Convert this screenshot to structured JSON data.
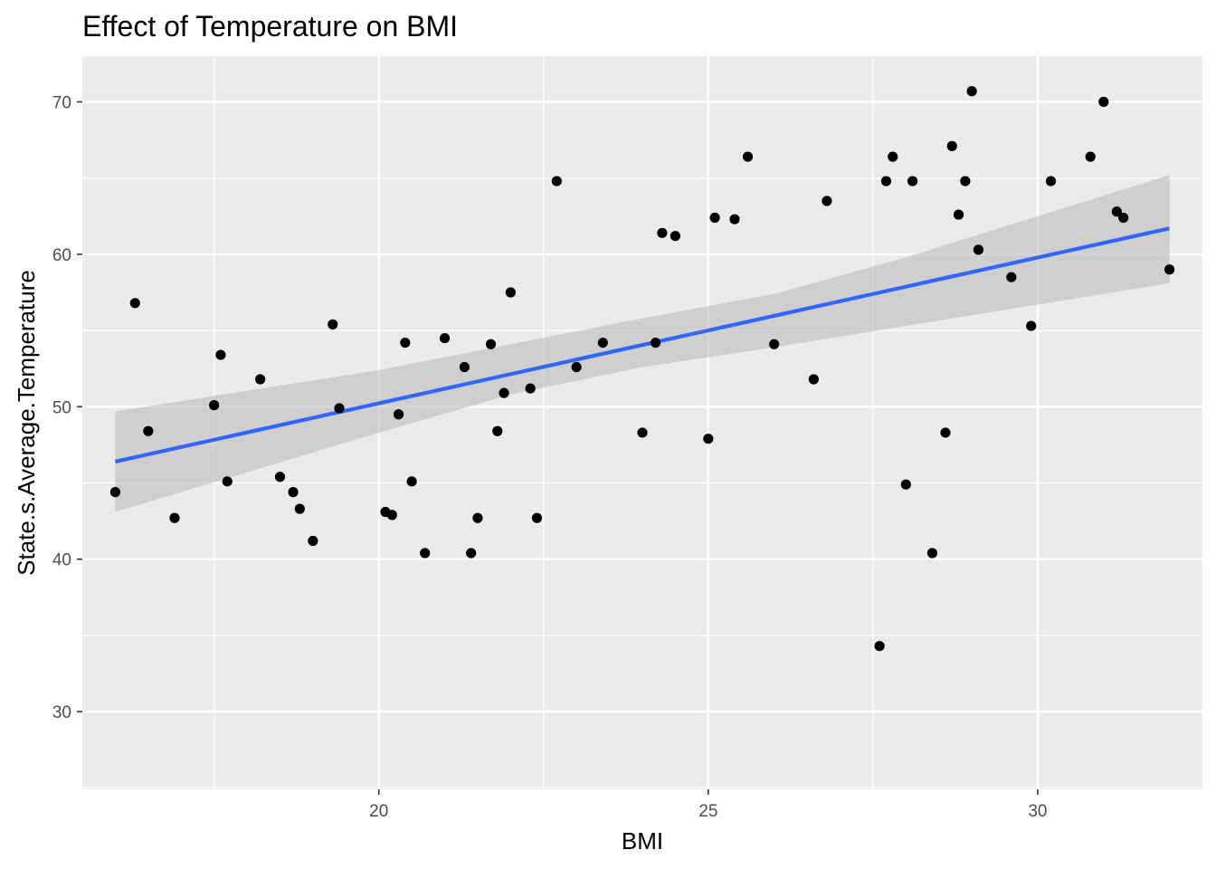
{
  "chart_data": {
    "type": "scatter",
    "title": "Effect of Temperature on BMI",
    "xlabel": "BMI",
    "ylabel": "State.s.Average.Temperature",
    "xlim": [
      15.5,
      32.5
    ],
    "ylim": [
      24.9,
      73.0
    ],
    "x_ticks": [
      20,
      25,
      30
    ],
    "y_ticks": [
      30,
      40,
      50,
      60,
      70
    ],
    "x_tick_labels": [
      "20",
      "25",
      "30"
    ],
    "y_tick_labels": [
      "30",
      "40",
      "50",
      "60",
      "70"
    ],
    "grid": true,
    "colors": {
      "panel_background": "#ebebeb",
      "grid_major": "#ffffff",
      "points": "#000000",
      "trend_line": "#3366ff",
      "confidence_band": "#bdbdbd"
    },
    "points": [
      {
        "x": 16.0,
        "y": 44.4
      },
      {
        "x": 16.3,
        "y": 56.8
      },
      {
        "x": 16.5,
        "y": 48.4
      },
      {
        "x": 16.9,
        "y": 42.7
      },
      {
        "x": 17.5,
        "y": 50.1
      },
      {
        "x": 17.6,
        "y": 53.4
      },
      {
        "x": 17.7,
        "y": 45.1
      },
      {
        "x": 18.2,
        "y": 51.8
      },
      {
        "x": 18.5,
        "y": 45.4
      },
      {
        "x": 18.7,
        "y": 44.4
      },
      {
        "x": 18.8,
        "y": 43.3
      },
      {
        "x": 19.0,
        "y": 41.2
      },
      {
        "x": 19.3,
        "y": 55.4
      },
      {
        "x": 19.4,
        "y": 49.9
      },
      {
        "x": 20.1,
        "y": 43.1
      },
      {
        "x": 20.2,
        "y": 42.9
      },
      {
        "x": 20.3,
        "y": 49.5
      },
      {
        "x": 20.4,
        "y": 54.2
      },
      {
        "x": 20.5,
        "y": 45.1
      },
      {
        "x": 20.7,
        "y": 40.4
      },
      {
        "x": 21.0,
        "y": 54.5
      },
      {
        "x": 21.3,
        "y": 52.6
      },
      {
        "x": 21.4,
        "y": 40.4
      },
      {
        "x": 21.5,
        "y": 42.7
      },
      {
        "x": 21.7,
        "y": 54.1
      },
      {
        "x": 21.8,
        "y": 48.4
      },
      {
        "x": 21.9,
        "y": 50.9
      },
      {
        "x": 22.0,
        "y": 57.5
      },
      {
        "x": 22.3,
        "y": 51.2
      },
      {
        "x": 22.4,
        "y": 42.7
      },
      {
        "x": 22.7,
        "y": 64.8
      },
      {
        "x": 23.0,
        "y": 52.6
      },
      {
        "x": 23.4,
        "y": 54.2
      },
      {
        "x": 24.0,
        "y": 48.3
      },
      {
        "x": 24.2,
        "y": 54.2
      },
      {
        "x": 24.3,
        "y": 61.4
      },
      {
        "x": 24.5,
        "y": 61.2
      },
      {
        "x": 25.0,
        "y": 47.9
      },
      {
        "x": 25.1,
        "y": 62.4
      },
      {
        "x": 25.4,
        "y": 62.3
      },
      {
        "x": 25.6,
        "y": 66.4
      },
      {
        "x": 26.0,
        "y": 54.1
      },
      {
        "x": 26.6,
        "y": 51.8
      },
      {
        "x": 26.8,
        "y": 63.5
      },
      {
        "x": 27.6,
        "y": 34.3
      },
      {
        "x": 27.7,
        "y": 64.8
      },
      {
        "x": 27.8,
        "y": 66.4
      },
      {
        "x": 28.0,
        "y": 44.9
      },
      {
        "x": 28.1,
        "y": 64.8
      },
      {
        "x": 28.4,
        "y": 40.4
      },
      {
        "x": 28.6,
        "y": 48.3
      },
      {
        "x": 28.7,
        "y": 67.1
      },
      {
        "x": 28.8,
        "y": 62.6
      },
      {
        "x": 28.9,
        "y": 64.8
      },
      {
        "x": 29.0,
        "y": 70.7
      },
      {
        "x": 29.1,
        "y": 60.3
      },
      {
        "x": 29.6,
        "y": 58.5
      },
      {
        "x": 29.9,
        "y": 55.3
      },
      {
        "x": 30.2,
        "y": 64.8
      },
      {
        "x": 30.8,
        "y": 66.4
      },
      {
        "x": 31.0,
        "y": 70.0
      },
      {
        "x": 31.2,
        "y": 62.8
      },
      {
        "x": 31.3,
        "y": 62.4
      },
      {
        "x": 32.0,
        "y": 59.0
      }
    ],
    "trend_line": {
      "x": [
        16.0,
        32.0
      ],
      "y": [
        46.4,
        61.7
      ]
    },
    "confidence_band": {
      "x": [
        16.0,
        20.0,
        22.0,
        24.0,
        26.0,
        28.0,
        30.0,
        32.0
      ],
      "lower": [
        43.1,
        48.3,
        50.8,
        52.6,
        53.9,
        55.3,
        56.7,
        58.1
      ],
      "upper": [
        49.7,
        52.4,
        54.1,
        55.8,
        57.4,
        59.8,
        62.5,
        65.2
      ]
    }
  }
}
